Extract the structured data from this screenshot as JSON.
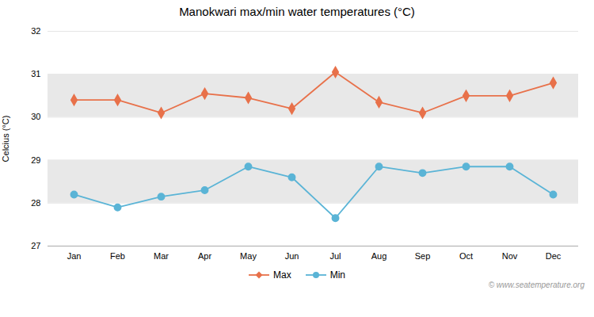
{
  "chart_data": {
    "type": "line",
    "title": "Manokwari max/min water temperatures (°C)",
    "ylabel": "Celcius (°C)",
    "categories": [
      "Jan",
      "Feb",
      "Mar",
      "Apr",
      "May",
      "Jun",
      "Jul",
      "Aug",
      "Sep",
      "Oct",
      "Nov",
      "Dec"
    ],
    "series": [
      {
        "name": "Max",
        "color": "#e8714a",
        "marker": "diamond",
        "values": [
          30.4,
          30.4,
          30.1,
          30.55,
          30.45,
          30.2,
          31.05,
          30.35,
          30.1,
          30.5,
          30.5,
          30.8
        ]
      },
      {
        "name": "Min",
        "color": "#5ab4d6",
        "marker": "circle",
        "values": [
          28.2,
          27.9,
          28.15,
          28.3,
          28.85,
          28.6,
          27.65,
          28.85,
          28.7,
          28.85,
          28.85,
          28.2
        ]
      }
    ],
    "bands": {
      "ranges": [
        [
          28,
          29
        ],
        [
          30,
          31
        ]
      ],
      "color": "#e8e8e8"
    },
    "ylim": [
      27,
      32
    ],
    "yticks": [
      27,
      28,
      29,
      30,
      31,
      32
    ],
    "grid": true,
    "legend": "bottom",
    "annotations": [
      "© www.seatemperature.org"
    ]
  }
}
